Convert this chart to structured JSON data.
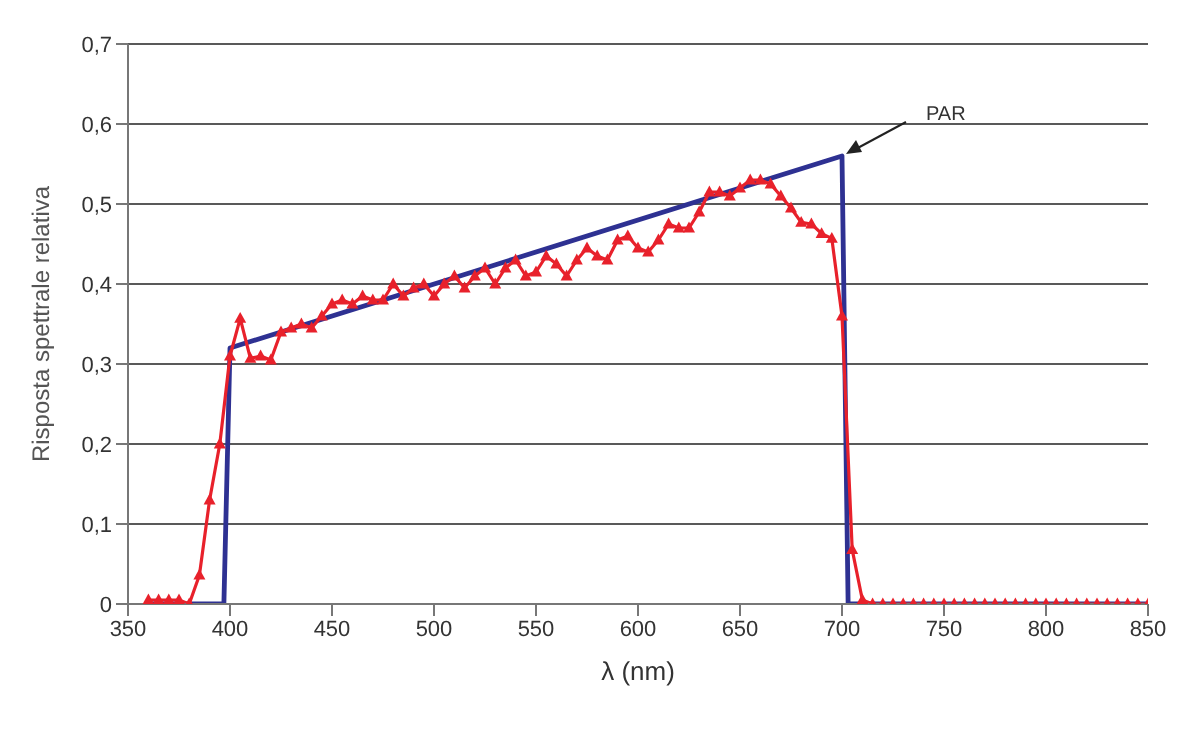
{
  "chart_data": {
    "type": "line",
    "xlabel": "λ (nm)",
    "ylabel": "Risposta spettrale relativa",
    "xlim": [
      350,
      850
    ],
    "xticks": [
      350,
      400,
      450,
      500,
      550,
      600,
      650,
      700,
      750,
      800,
      850
    ],
    "ylim": [
      0,
      0.7
    ],
    "yticks": [
      0,
      {
        "value": 0.1,
        "label": "0,1"
      },
      {
        "value": 0.2,
        "label": "0,2"
      },
      {
        "value": 0.3,
        "label": "0,3"
      },
      {
        "value": 0.4,
        "label": "0,4"
      },
      {
        "value": 0.5,
        "label": "0,5"
      },
      {
        "value": 0.6,
        "label": "0,6"
      },
      {
        "value": 0.7,
        "label": "0,7"
      }
    ],
    "grid": "y",
    "annotations": [
      {
        "text": "PAR",
        "x": 700,
        "y": 0.56
      }
    ],
    "series": [
      {
        "color": "#2e3192",
        "marker": "none",
        "x": [
          360,
          397,
          400,
          700,
          703,
          850
        ],
        "values": [
          0,
          0,
          0.32,
          0.56,
          0,
          0
        ]
      },
      {
        "color": "#e8212b",
        "marker": "triangle",
        "x": [
          360,
          365,
          370,
          375,
          380,
          385,
          390,
          395,
          400,
          405,
          410,
          415,
          420,
          425,
          430,
          435,
          440,
          445,
          450,
          455,
          460,
          465,
          470,
          475,
          480,
          485,
          490,
          495,
          500,
          505,
          510,
          515,
          520,
          525,
          530,
          535,
          540,
          545,
          550,
          555,
          560,
          565,
          570,
          575,
          580,
          585,
          590,
          595,
          600,
          605,
          610,
          615,
          620,
          625,
          630,
          635,
          640,
          645,
          650,
          655,
          660,
          665,
          670,
          675,
          680,
          685,
          690,
          695,
          700,
          705,
          710,
          715,
          720,
          725,
          730,
          735,
          740,
          745,
          750,
          755,
          760,
          765,
          770,
          775,
          780,
          785,
          790,
          795,
          800,
          805,
          810,
          815,
          820,
          825,
          830,
          835,
          840,
          845,
          850
        ],
        "values": [
          0.005,
          0.005,
          0.005,
          0.005,
          0,
          0.036,
          0.13,
          0.2,
          0.31,
          0.357,
          0.307,
          0.31,
          0.305,
          0.34,
          0.345,
          0.35,
          0.345,
          0.36,
          0.375,
          0.38,
          0.375,
          0.385,
          0.38,
          0.38,
          0.4,
          0.385,
          0.395,
          0.4,
          0.385,
          0.4,
          0.41,
          0.395,
          0.41,
          0.42,
          0.4,
          0.42,
          0.43,
          0.41,
          0.415,
          0.435,
          0.425,
          0.41,
          0.43,
          0.445,
          0.435,
          0.43,
          0.455,
          0.46,
          0.445,
          0.44,
          0.455,
          0.475,
          0.47,
          0.47,
          0.49,
          0.515,
          0.515,
          0.51,
          0.52,
          0.53,
          0.53,
          0.525,
          0.51,
          0.495,
          0.477,
          0.475,
          0.463,
          0.457,
          0.36,
          0.068,
          0.005,
          0,
          0,
          0,
          0,
          0,
          0,
          0,
          0,
          0,
          0,
          0,
          0,
          0,
          0,
          0,
          0,
          0,
          0,
          0,
          0,
          0,
          0,
          0,
          0,
          0,
          0,
          0,
          0
        ]
      }
    ]
  }
}
